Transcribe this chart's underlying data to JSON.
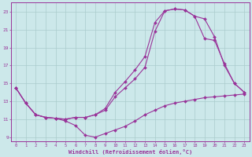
{
  "bg_color": "#cce8ea",
  "grid_color": "#aacccc",
  "line_color": "#993399",
  "xlabel": "Windchill (Refroidissement éolien,°C)",
  "xlim": [
    -0.5,
    23.5
  ],
  "ylim": [
    8.5,
    24.0
  ],
  "yticks": [
    9,
    11,
    13,
    15,
    17,
    19,
    21,
    23
  ],
  "xticks": [
    0,
    1,
    2,
    3,
    4,
    5,
    6,
    7,
    8,
    9,
    10,
    11,
    12,
    13,
    14,
    15,
    16,
    17,
    18,
    19,
    20,
    21,
    22,
    23
  ],
  "line1_x": [
    0,
    1,
    2,
    3,
    4,
    5,
    6,
    7,
    8,
    9,
    10,
    11,
    12,
    13,
    14,
    15,
    16,
    17,
    18,
    19,
    20,
    21,
    22,
    23
  ],
  "line1_y": [
    14.5,
    12.8,
    11.5,
    11.2,
    11.1,
    10.8,
    10.3,
    9.2,
    9.0,
    9.4,
    9.8,
    10.2,
    10.8,
    11.5,
    12.0,
    12.5,
    12.8,
    13.0,
    13.2,
    13.4,
    13.5,
    13.6,
    13.7,
    13.8
  ],
  "line2_x": [
    0,
    1,
    2,
    3,
    4,
    5,
    6,
    7,
    8,
    9,
    10,
    11,
    12,
    13,
    14,
    15,
    16,
    17,
    18,
    19,
    20,
    21,
    22,
    23
  ],
  "line2_y": [
    14.5,
    12.8,
    11.5,
    11.2,
    11.1,
    11.0,
    11.2,
    11.2,
    11.5,
    12.0,
    13.5,
    14.5,
    15.5,
    16.8,
    20.8,
    23.1,
    23.3,
    23.2,
    22.5,
    20.0,
    19.8,
    17.2,
    15.0,
    14.0
  ],
  "line3_x": [
    0,
    1,
    2,
    3,
    4,
    5,
    6,
    7,
    8,
    9,
    10,
    11,
    12,
    13,
    14,
    15,
    16,
    17,
    18,
    19,
    20,
    21,
    22,
    23
  ],
  "line3_y": [
    14.5,
    12.8,
    11.5,
    11.2,
    11.1,
    11.0,
    11.2,
    11.2,
    11.5,
    12.2,
    14.0,
    15.2,
    16.5,
    18.0,
    21.8,
    23.1,
    23.3,
    23.2,
    22.5,
    22.2,
    20.2,
    17.0,
    15.0,
    14.0
  ]
}
